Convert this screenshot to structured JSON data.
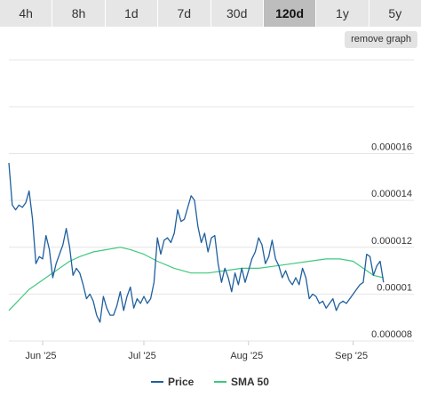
{
  "tabs": [
    {
      "label": "4h",
      "active": false
    },
    {
      "label": "8h",
      "active": false
    },
    {
      "label": "1d",
      "active": false
    },
    {
      "label": "7d",
      "active": false
    },
    {
      "label": "30d",
      "active": false
    },
    {
      "label": "120d",
      "active": true
    },
    {
      "label": "1y",
      "active": false
    },
    {
      "label": "5y",
      "active": false
    }
  ],
  "remove_graph_label": "remove graph",
  "chart_data": {
    "type": "line",
    "x_range": [
      "2025-05-22",
      "2025-09-19"
    ],
    "x_ticks": [
      {
        "label": "Jun '25",
        "date": "2025-06-01"
      },
      {
        "label": "Jul '25",
        "date": "2025-07-01"
      },
      {
        "label": "Aug '25",
        "date": "2025-08-01"
      },
      {
        "label": "Sep '25",
        "date": "2025-09-01"
      }
    ],
    "y_ticks": [
      {
        "label": "0.000008",
        "value": 8e-06
      },
      {
        "label": "0.00001",
        "value": 1e-05
      },
      {
        "label": "0.000012",
        "value": 1.2e-05
      },
      {
        "label": "0.000014",
        "value": 1.4e-05
      },
      {
        "label": "0.000016",
        "value": 1.6e-05
      }
    ],
    "ylim": [
      8e-06,
      2.02e-05
    ],
    "grid": true,
    "legend_position": "bottom",
    "series": [
      {
        "name": "Price",
        "color": "#1f5f9e",
        "points": [
          [
            "2025-05-22",
            1.56e-05
          ],
          [
            "2025-05-23",
            1.38e-05
          ],
          [
            "2025-05-24",
            1.36e-05
          ],
          [
            "2025-05-25",
            1.38e-05
          ],
          [
            "2025-05-26",
            1.37e-05
          ],
          [
            "2025-05-27",
            1.39e-05
          ],
          [
            "2025-05-28",
            1.44e-05
          ],
          [
            "2025-05-29",
            1.32e-05
          ],
          [
            "2025-05-30",
            1.13e-05
          ],
          [
            "2025-05-31",
            1.16e-05
          ],
          [
            "2025-06-01",
            1.15e-05
          ],
          [
            "2025-06-02",
            1.25e-05
          ],
          [
            "2025-06-03",
            1.19e-05
          ],
          [
            "2025-06-04",
            1.07e-05
          ],
          [
            "2025-06-05",
            1.13e-05
          ],
          [
            "2025-06-06",
            1.17e-05
          ],
          [
            "2025-06-07",
            1.21e-05
          ],
          [
            "2025-06-08",
            1.28e-05
          ],
          [
            "2025-06-09",
            1.2e-05
          ],
          [
            "2025-06-10",
            1.08e-05
          ],
          [
            "2025-06-11",
            1.11e-05
          ],
          [
            "2025-06-12",
            1.09e-05
          ],
          [
            "2025-06-13",
            1.04e-05
          ],
          [
            "2025-06-14",
            9.8e-06
          ],
          [
            "2025-06-15",
            1e-05
          ],
          [
            "2025-06-16",
            9.7e-06
          ],
          [
            "2025-06-17",
            9.1e-06
          ],
          [
            "2025-06-18",
            8.8e-06
          ],
          [
            "2025-06-19",
            9.9e-06
          ],
          [
            "2025-06-20",
            9.4e-06
          ],
          [
            "2025-06-21",
            9.1e-06
          ],
          [
            "2025-06-22",
            9.1e-06
          ],
          [
            "2025-06-23",
            9.5e-06
          ],
          [
            "2025-06-24",
            1.01e-05
          ],
          [
            "2025-06-25",
            9.3e-06
          ],
          [
            "2025-06-26",
            9.9e-06
          ],
          [
            "2025-06-27",
            1.03e-05
          ],
          [
            "2025-06-28",
            9.4e-06
          ],
          [
            "2025-06-29",
            9.8e-06
          ],
          [
            "2025-06-30",
            9.6e-06
          ],
          [
            "2025-07-01",
            9.9e-06
          ],
          [
            "2025-07-02",
            9.6e-06
          ],
          [
            "2025-07-03",
            9.8e-06
          ],
          [
            "2025-07-04",
            1.05e-05
          ],
          [
            "2025-07-05",
            1.24e-05
          ],
          [
            "2025-07-06",
            1.17e-05
          ],
          [
            "2025-07-07",
            1.23e-05
          ],
          [
            "2025-07-08",
            1.24e-05
          ],
          [
            "2025-07-09",
            1.22e-05
          ],
          [
            "2025-07-10",
            1.26e-05
          ],
          [
            "2025-07-11",
            1.36e-05
          ],
          [
            "2025-07-12",
            1.31e-05
          ],
          [
            "2025-07-13",
            1.32e-05
          ],
          [
            "2025-07-14",
            1.37e-05
          ],
          [
            "2025-07-15",
            1.42e-05
          ],
          [
            "2025-07-16",
            1.4e-05
          ],
          [
            "2025-07-17",
            1.29e-05
          ],
          [
            "2025-07-18",
            1.22e-05
          ],
          [
            "2025-07-19",
            1.26e-05
          ],
          [
            "2025-07-20",
            1.18e-05
          ],
          [
            "2025-07-21",
            1.24e-05
          ],
          [
            "2025-07-22",
            1.25e-05
          ],
          [
            "2025-07-23",
            1.13e-05
          ],
          [
            "2025-07-24",
            1.05e-05
          ],
          [
            "2025-07-25",
            1.11e-05
          ],
          [
            "2025-07-26",
            1.07e-05
          ],
          [
            "2025-07-27",
            1.01e-05
          ],
          [
            "2025-07-28",
            1.09e-05
          ],
          [
            "2025-07-29",
            1.04e-05
          ],
          [
            "2025-07-30",
            1.11e-05
          ],
          [
            "2025-07-31",
            1.05e-05
          ],
          [
            "2025-08-01",
            1.1e-05
          ],
          [
            "2025-08-02",
            1.15e-05
          ],
          [
            "2025-08-03",
            1.18e-05
          ],
          [
            "2025-08-04",
            1.24e-05
          ],
          [
            "2025-08-05",
            1.21e-05
          ],
          [
            "2025-08-06",
            1.13e-05
          ],
          [
            "2025-08-07",
            1.16e-05
          ],
          [
            "2025-08-08",
            1.23e-05
          ],
          [
            "2025-08-09",
            1.15e-05
          ],
          [
            "2025-08-10",
            1.12e-05
          ],
          [
            "2025-08-11",
            1.07e-05
          ],
          [
            "2025-08-12",
            1.1e-05
          ],
          [
            "2025-08-13",
            1.06e-05
          ],
          [
            "2025-08-14",
            1.04e-05
          ],
          [
            "2025-08-15",
            1.07e-05
          ],
          [
            "2025-08-16",
            1.04e-05
          ],
          [
            "2025-08-17",
            1.11e-05
          ],
          [
            "2025-08-18",
            1.07e-05
          ],
          [
            "2025-08-19",
            9.8e-06
          ],
          [
            "2025-08-20",
            1e-05
          ],
          [
            "2025-08-21",
            9.9e-06
          ],
          [
            "2025-08-22",
            9.6e-06
          ],
          [
            "2025-08-23",
            9.7e-06
          ],
          [
            "2025-08-24",
            9.4e-06
          ],
          [
            "2025-08-25",
            9.6e-06
          ],
          [
            "2025-08-26",
            9.8e-06
          ],
          [
            "2025-08-27",
            9.3e-06
          ],
          [
            "2025-08-28",
            9.6e-06
          ],
          [
            "2025-08-29",
            9.7e-06
          ],
          [
            "2025-08-30",
            9.6e-06
          ],
          [
            "2025-08-31",
            9.8e-06
          ],
          [
            "2025-09-01",
            1e-05
          ],
          [
            "2025-09-02",
            1.02e-05
          ],
          [
            "2025-09-03",
            1.04e-05
          ],
          [
            "2025-09-04",
            1.05e-05
          ],
          [
            "2025-09-05",
            1.17e-05
          ],
          [
            "2025-09-06",
            1.16e-05
          ],
          [
            "2025-09-07",
            1.08e-05
          ],
          [
            "2025-09-08",
            1.12e-05
          ],
          [
            "2025-09-09",
            1.14e-05
          ],
          [
            "2025-09-10",
            1.05e-05
          ]
        ]
      },
      {
        "name": "SMA 50",
        "color": "#3ec97e",
        "points": [
          [
            "2025-05-22",
            9.3e-06
          ],
          [
            "2025-05-24",
            9.6e-06
          ],
          [
            "2025-05-26",
            9.9e-06
          ],
          [
            "2025-05-28",
            1.02e-05
          ],
          [
            "2025-05-31",
            1.05e-05
          ],
          [
            "2025-06-03",
            1.08e-05
          ],
          [
            "2025-06-06",
            1.11e-05
          ],
          [
            "2025-06-09",
            1.14e-05
          ],
          [
            "2025-06-12",
            1.16e-05
          ],
          [
            "2025-06-16",
            1.18e-05
          ],
          [
            "2025-06-20",
            1.19e-05
          ],
          [
            "2025-06-24",
            1.2e-05
          ],
          [
            "2025-06-27",
            1.19e-05
          ],
          [
            "2025-07-01",
            1.17e-05
          ],
          [
            "2025-07-05",
            1.14e-05
          ],
          [
            "2025-07-10",
            1.11e-05
          ],
          [
            "2025-07-15",
            1.09e-05
          ],
          [
            "2025-07-20",
            1.09e-05
          ],
          [
            "2025-07-25",
            1.1e-05
          ],
          [
            "2025-07-30",
            1.11e-05
          ],
          [
            "2025-08-04",
            1.11e-05
          ],
          [
            "2025-08-09",
            1.12e-05
          ],
          [
            "2025-08-14",
            1.13e-05
          ],
          [
            "2025-08-19",
            1.14e-05
          ],
          [
            "2025-08-24",
            1.15e-05
          ],
          [
            "2025-08-28",
            1.15e-05
          ],
          [
            "2025-09-01",
            1.14e-05
          ],
          [
            "2025-09-04",
            1.11e-05
          ],
          [
            "2025-09-07",
            1.08e-05
          ],
          [
            "2025-09-10",
            1.07e-05
          ]
        ]
      }
    ]
  }
}
